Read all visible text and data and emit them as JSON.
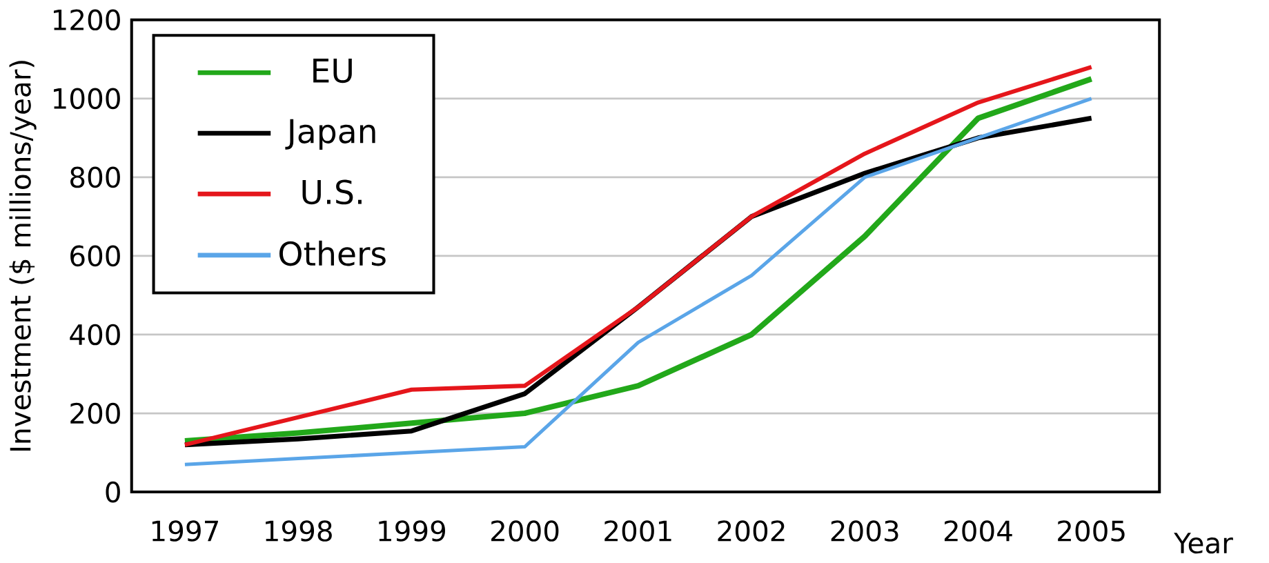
{
  "chart_data": {
    "type": "line",
    "xlabel": "Year",
    "ylabel": "Investment ($ millions/year)",
    "categories": [
      "1997",
      "1998",
      "1999",
      "2000",
      "2001",
      "2002",
      "2003",
      "2004",
      "2005"
    ],
    "series": [
      {
        "name": "EU",
        "color": "#22a81a",
        "values": [
          130,
          150,
          175,
          200,
          270,
          400,
          650,
          950,
          1050
        ]
      },
      {
        "name": "Japan",
        "color": "#000000",
        "values": [
          120,
          135,
          155,
          250,
          470,
          700,
          810,
          900,
          950
        ]
      },
      {
        "name": "U.S.",
        "color": "#e5161b",
        "values": [
          120,
          190,
          260,
          270,
          470,
          700,
          860,
          990,
          1080
        ]
      },
      {
        "name": "Others",
        "color": "#5aa5e8",
        "values": [
          70,
          85,
          100,
          115,
          380,
          550,
          800,
          900,
          1000
        ]
      }
    ],
    "ylim": [
      0,
      1200
    ],
    "yticks": [
      0,
      200,
      400,
      600,
      800,
      1000,
      1200
    ],
    "grid": "y",
    "legend": "top left",
    "marker": "none",
    "line_style": "solid"
  }
}
